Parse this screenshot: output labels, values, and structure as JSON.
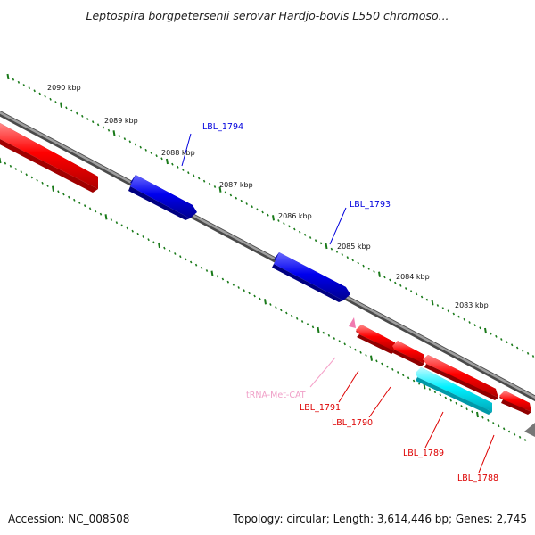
{
  "title": "Leptospira borgpetersenii serovar Hardjo-bovis L550 chromoso...",
  "footer": {
    "accession": "Accession: NC_008508",
    "summary": "Topology: circular; Length: 3,614,446 bp; Genes: 2,745"
  },
  "ruler": {
    "ticks": [
      "2090 kbp",
      "2089 kbp",
      "2088 kbp",
      "2087 kbp",
      "2086 kbp",
      "2085 kbp",
      "2084 kbp",
      "2083 kbp"
    ]
  },
  "features": [
    {
      "label": "LBL_1794",
      "type": "CDS",
      "strand": "forward",
      "color": "#0000dd"
    },
    {
      "label": "LBL_1793",
      "type": "CDS",
      "strand": "forward",
      "color": "#0000dd"
    },
    {
      "label": "tRNA-Met-CAT",
      "type": "tRNA",
      "strand": "reverse",
      "color": "#f5a0c8"
    },
    {
      "label": "LBL_1791",
      "type": "CDS",
      "strand": "reverse",
      "color": "#dd0000"
    },
    {
      "label": "LBL_1790",
      "type": "CDS",
      "strand": "reverse",
      "color": "#dd0000"
    },
    {
      "label": "LBL_1789",
      "type": "gene",
      "strand": "reverse",
      "color": "#00d8e8"
    },
    {
      "label": "LBL_1788",
      "type": "CDS",
      "strand": "reverse",
      "color": "#dd0000"
    }
  ],
  "colors": {
    "backbone": "#888888",
    "tick": "#1a7a1a",
    "forward_cds": "#0000dd",
    "reverse_cds": "#dd0000",
    "rna": "#00d8e8",
    "trna": "#f5a0c8"
  }
}
